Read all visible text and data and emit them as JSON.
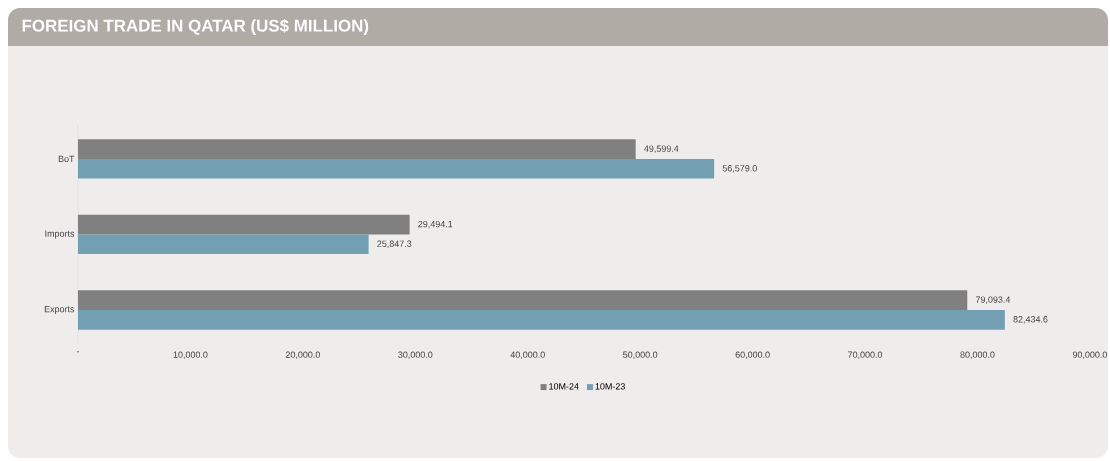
{
  "chart_data": {
    "type": "bar",
    "orientation": "horizontal",
    "title": "FOREIGN TRADE IN QATAR (US$ MILLION)",
    "categories": [
      "BoT",
      "Imports",
      "Exports"
    ],
    "series": [
      {
        "name": "10M-24",
        "color": "#808080",
        "values": [
          49599.4,
          29494.1,
          79093.4
        ],
        "value_labels": [
          "49,599.4",
          "29,494.1",
          "79,093.4"
        ]
      },
      {
        "name": "10M-23",
        "color": "#739fb2",
        "values": [
          56579.0,
          25847.3,
          82434.6
        ],
        "value_labels": [
          "56,579.0",
          "25,847.3",
          "82,434.6"
        ]
      }
    ],
    "xlim": [
      0,
      90000
    ],
    "xticks": [
      {
        "value": 0,
        "label": "-"
      },
      {
        "value": 10000,
        "label": "10,000.0"
      },
      {
        "value": 20000,
        "label": "20,000.0"
      },
      {
        "value": 30000,
        "label": "30,000.0"
      },
      {
        "value": 40000,
        "label": "40,000.0"
      },
      {
        "value": 50000,
        "label": "50,000.0"
      },
      {
        "value": 60000,
        "label": "60,000.0"
      },
      {
        "value": 70000,
        "label": "70,000.0"
      },
      {
        "value": 80000,
        "label": "80,000.0"
      },
      {
        "value": 90000,
        "label": "90,000.0"
      }
    ],
    "legend": "bottom",
    "grid": false
  }
}
